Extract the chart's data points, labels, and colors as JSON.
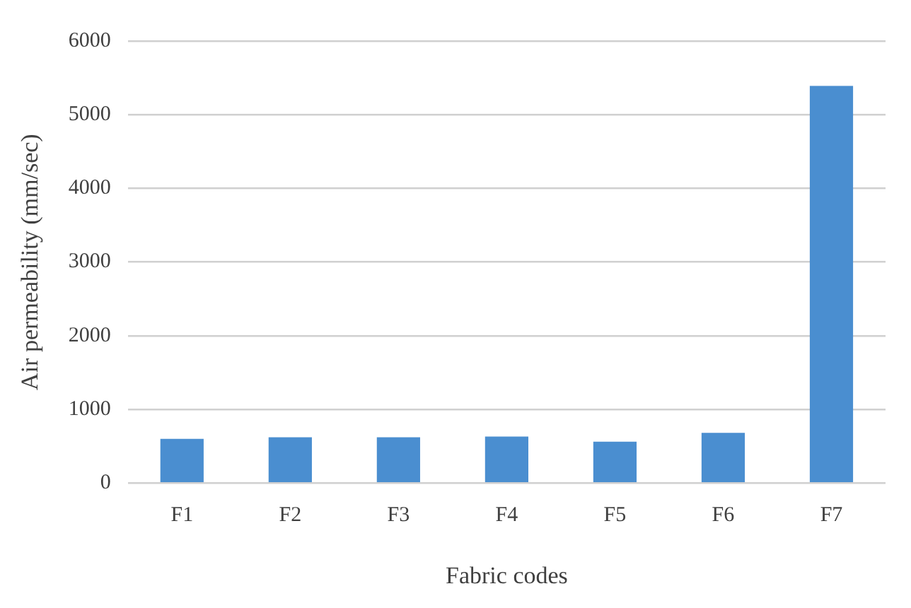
{
  "chart_data": {
    "type": "bar",
    "xlabel": "Fabric codes",
    "ylabel": "Air permeability (mm/sec)",
    "categories": [
      "F1",
      "F2",
      "F3",
      "F4",
      "F5",
      "F6",
      "F7"
    ],
    "values": [
      600,
      620,
      620,
      630,
      560,
      680,
      5390
    ],
    "color": "#4a8ed0",
    "ylim": [
      0,
      6000
    ],
    "yticks": [
      0,
      1000,
      2000,
      3000,
      4000,
      5000,
      6000
    ],
    "grid": "y",
    "legend": false
  }
}
